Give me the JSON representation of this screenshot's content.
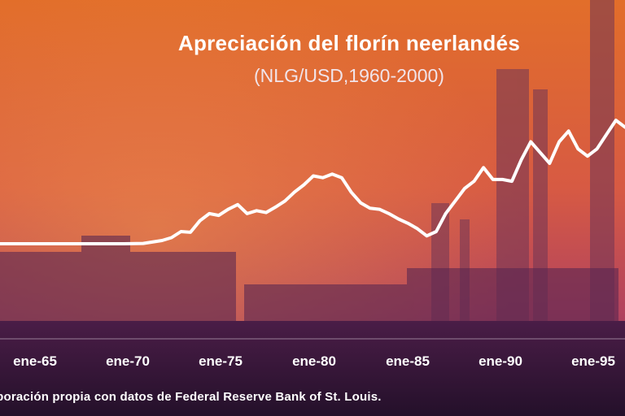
{
  "title": "Apreciación del florín neerlandés",
  "subtitle": "(NLG/USD,1960-2000)",
  "source": "Elaboración propia con datos de Federal Reserve Bank of St. Louis.",
  "colors": {
    "line": "#ffffff",
    "sky_top": "#e8742f",
    "sky_bottom": "#c84a58",
    "ground": "#3a1640"
  },
  "chart_data": {
    "type": "line",
    "title": "Apreciación del florín neerlandés",
    "subtitle": "(NLG/USD,1960-2000)",
    "xlabel": "",
    "ylabel": "",
    "x_tick_labels": [
      "ene-65",
      "ene-70",
      "ene-75",
      "ene-80",
      "ene-85",
      "ene-90",
      "ene-95"
    ],
    "x": [
      1962.0,
      1963.0,
      1964.0,
      1965.0,
      1966.0,
      1967.0,
      1968.0,
      1969.0,
      1970.0,
      1971.0,
      1971.5,
      1972.0,
      1972.5,
      1973.0,
      1973.5,
      1974.0,
      1974.5,
      1975.0,
      1975.5,
      1976.0,
      1976.5,
      1977.0,
      1977.5,
      1978.0,
      1978.5,
      1979.0,
      1979.5,
      1980.0,
      1980.5,
      1981.0,
      1981.5,
      1982.0,
      1982.5,
      1983.0,
      1983.5,
      1984.0,
      1984.5,
      1985.0,
      1985.5,
      1986.0,
      1986.5,
      1987.0,
      1987.5,
      1988.0,
      1988.5,
      1989.0,
      1989.5,
      1990.0,
      1990.5,
      1991.0,
      1991.5,
      1992.0,
      1992.5,
      1993.0,
      1993.5,
      1994.0,
      1994.5,
      1995.0,
      1995.5,
      1996.0
    ],
    "y": [
      0.276,
      0.276,
      0.276,
      0.276,
      0.276,
      0.276,
      0.276,
      0.276,
      0.277,
      0.285,
      0.293,
      0.31,
      0.308,
      0.34,
      0.36,
      0.355,
      0.372,
      0.385,
      0.36,
      0.368,
      0.363,
      0.378,
      0.395,
      0.42,
      0.44,
      0.465,
      0.46,
      0.47,
      0.46,
      0.42,
      0.39,
      0.375,
      0.372,
      0.36,
      0.345,
      0.333,
      0.318,
      0.298,
      0.31,
      0.36,
      0.395,
      0.43,
      0.45,
      0.488,
      0.455,
      0.455,
      0.45,
      0.51,
      0.56,
      0.53,
      0.5,
      0.56,
      0.59,
      0.54,
      0.52,
      0.54,
      0.58,
      0.62,
      0.6,
      0.59
    ],
    "xlim": [
      1962.0,
      1996.0
    ],
    "ylim": [
      0.276,
      0.62
    ],
    "grid": false,
    "legend": "none"
  }
}
